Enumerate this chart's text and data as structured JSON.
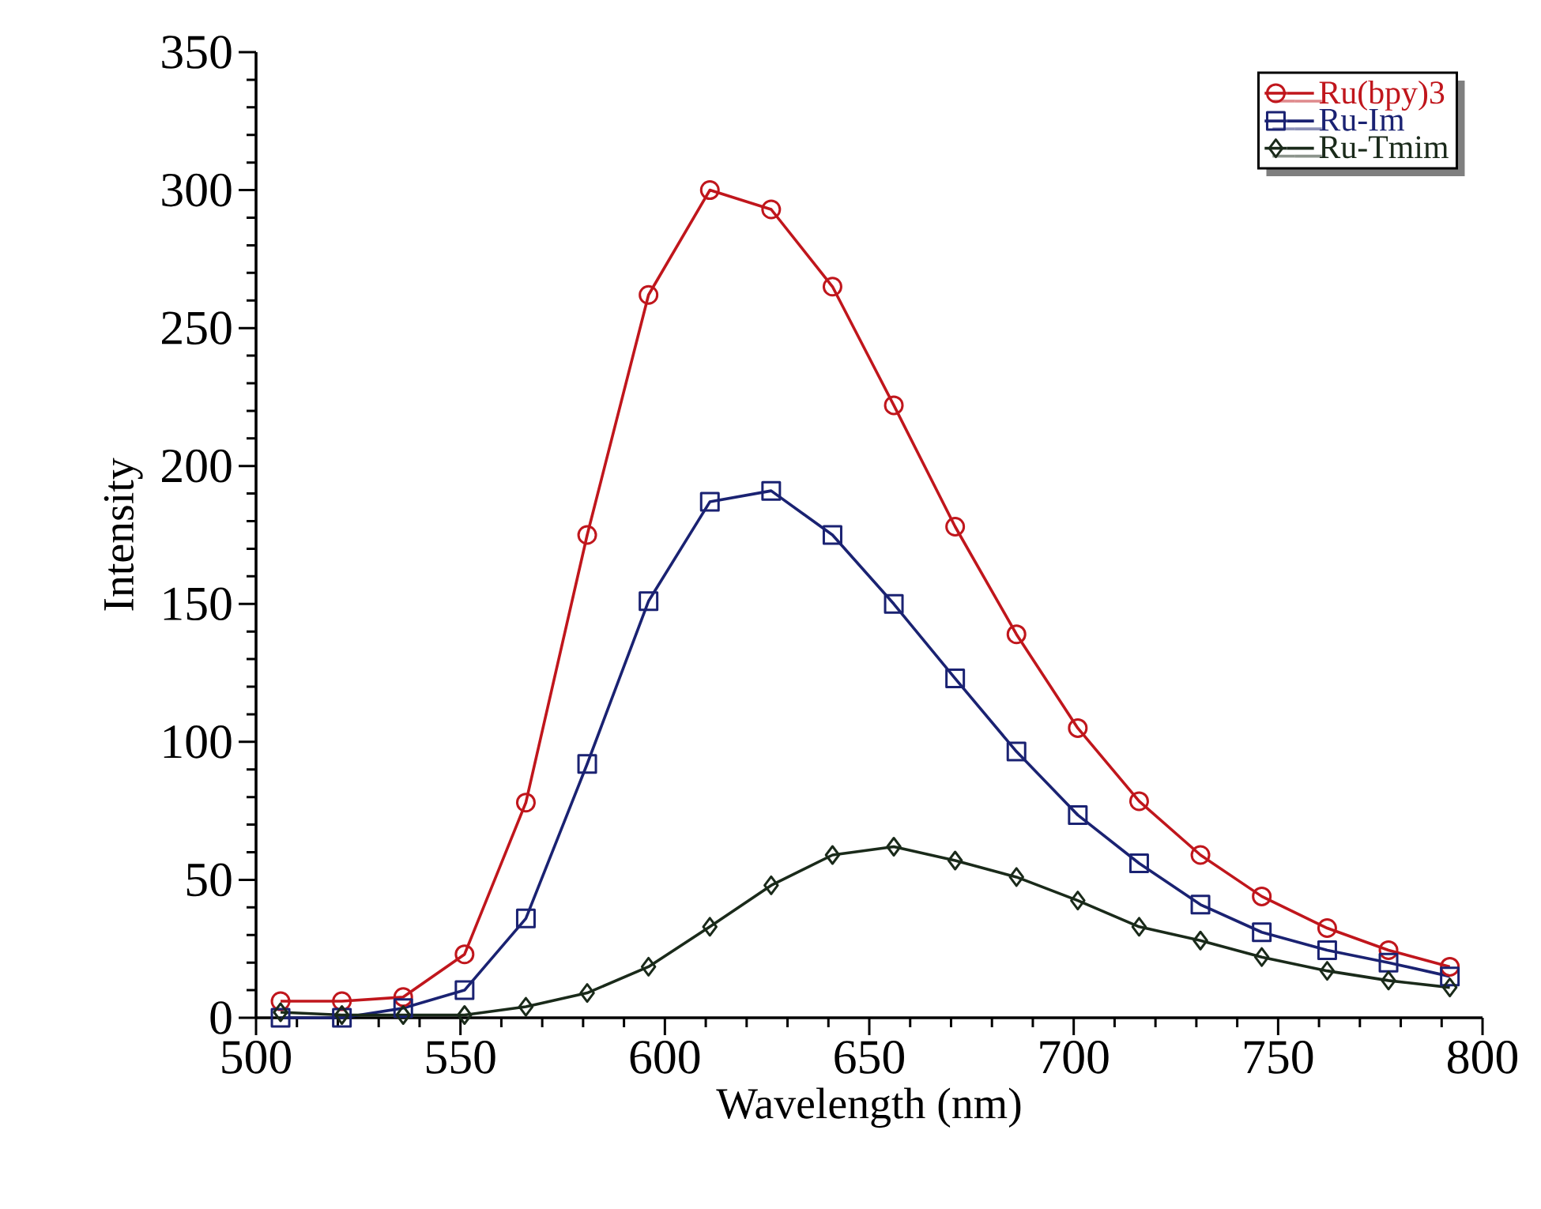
{
  "chart_data": {
    "type": "line",
    "xlabel": "Wavelength (nm)",
    "ylabel": "Intensity",
    "xlim": [
      500,
      800
    ],
    "xticks": [
      500,
      550,
      600,
      650,
      700,
      750,
      800
    ],
    "ylim": [
      0,
      350
    ],
    "yticks": [
      0,
      50,
      100,
      150,
      200,
      250,
      300,
      350
    ],
    "grid": false,
    "legend": "top right",
    "line_style": "solid",
    "x": [
      506,
      521,
      536,
      551,
      566,
      581,
      596,
      611,
      626,
      641,
      656,
      671,
      686,
      701,
      716,
      731,
      746,
      762,
      777,
      792
    ],
    "series": [
      {
        "name": "Ru(bpy)3",
        "color": "#c0161c",
        "marker": "circle",
        "values": [
          6,
          6,
          7.5,
          23,
          78,
          175,
          262,
          300,
          293,
          265,
          222,
          178,
          139,
          105,
          78.5,
          59,
          44,
          32.5,
          24.5,
          18.5
        ]
      },
      {
        "name": "Ru-Im",
        "color": "#1a2272",
        "marker": "square",
        "values": [
          0,
          0,
          3.5,
          10,
          36,
          92,
          151,
          187,
          191,
          175,
          150,
          123,
          96.5,
          73.5,
          56,
          41,
          31,
          24.5,
          20,
          15
        ]
      },
      {
        "name": "Ru-Tmim",
        "color": "#1a2a1a",
        "marker": "diamond",
        "values": [
          2,
          1,
          1,
          1,
          4,
          9,
          18.5,
          33,
          48,
          59,
          62,
          57,
          51,
          42.5,
          33,
          28,
          22,
          17,
          13.5,
          11
        ]
      }
    ]
  }
}
